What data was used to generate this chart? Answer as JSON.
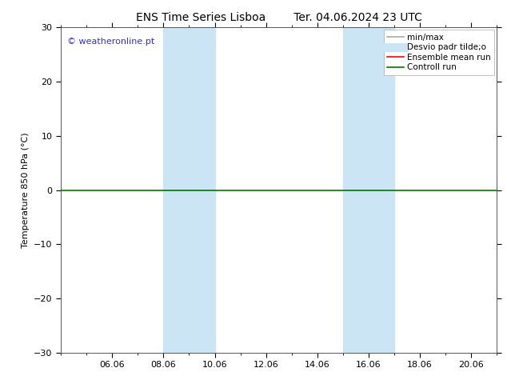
{
  "title_left": "ENS Time Series Lisboa",
  "title_right": "Ter. 04.06.2024 23 UTC",
  "ylabel": "Temperature 850 hPa (°C)",
  "ylim": [
    -30,
    30
  ],
  "yticks": [
    -30,
    -20,
    -10,
    0,
    10,
    20,
    30
  ],
  "xtick_labels": [
    "06.06",
    "08.06",
    "10.06",
    "12.06",
    "14.06",
    "16.06",
    "18.06",
    "20.06"
  ],
  "xtick_positions": [
    2,
    4,
    6,
    8,
    10,
    12,
    14,
    16
  ],
  "xlim": [
    0,
    17
  ],
  "background_color": "#ffffff",
  "plot_bg_color": "#ffffff",
  "shaded_bands": [
    {
      "x_start": 4,
      "x_end": 6
    },
    {
      "x_start": 11,
      "x_end": 13
    }
  ],
  "shade_color": "#cce5f5",
  "zero_line_color": "#007700",
  "watermark_text": "© weatheronline.pt",
  "watermark_color": "#3333cc",
  "legend_entries": [
    {
      "label": "min/max",
      "color": "#aaaaaa",
      "lw": 1.2
    },
    {
      "label": "Desvio padr tilde;o",
      "color": "#cce5f5",
      "lw": 8
    },
    {
      "label": "Ensemble mean run",
      "color": "#ff0000",
      "lw": 1.2
    },
    {
      "label": "Controll run",
      "color": "#007700",
      "lw": 1.2
    }
  ],
  "title_fontsize": 10,
  "legend_fontsize": 7.5,
  "tick_fontsize": 8,
  "ylabel_fontsize": 8,
  "watermark_fontsize": 8
}
